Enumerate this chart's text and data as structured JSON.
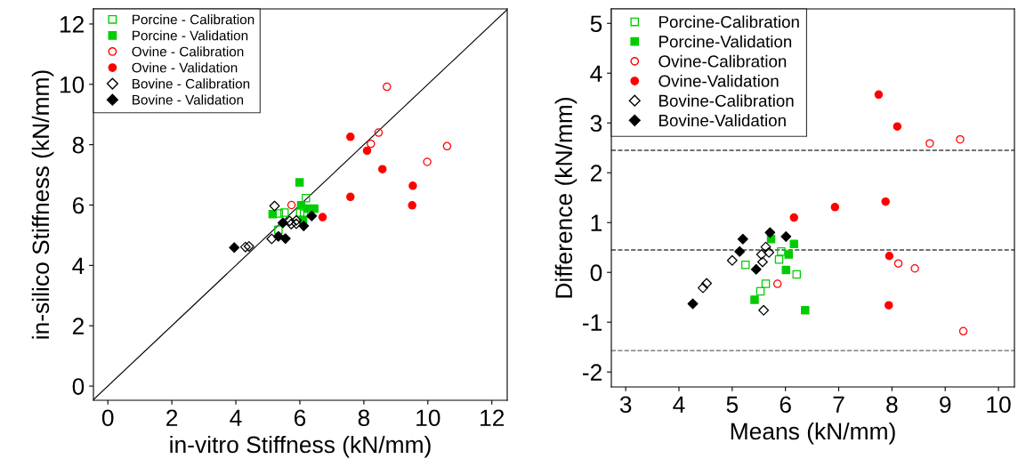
{
  "chart_data": [
    {
      "type": "scatter",
      "xlabel": "in-vitro Stiffness (kN/mm)",
      "ylabel": "in-silico Stiffness (kN/mm)",
      "xlim": [
        -0.45,
        12.48
      ],
      "ylim": [
        -0.47,
        12.5
      ],
      "xticks": [
        0,
        2,
        4,
        6,
        8,
        10,
        12
      ],
      "yticks": [
        0,
        2,
        4,
        6,
        8,
        10,
        12
      ],
      "grid": false,
      "legend": "top left",
      "series": [
        {
          "name": "Porcine - Calibration",
          "color": "#00cc00",
          "marker": "square",
          "x": [
            5.33,
            6.13,
            6.01,
            6.19,
            5.52,
            5.34
          ],
          "values": [
            5.18,
            5.71,
            5.75,
            6.23,
            5.75,
            5.72
          ]
        },
        {
          "name": "Porcine - Validation",
          "color": "#00cc00",
          "marker": "square",
          "x": [
            6.1,
            6.45,
            6.24,
            6.04,
            5.15,
            5.99
          ],
          "values": [
            5.51,
            5.88,
            5.88,
            5.99,
            5.7,
            6.75
          ]
        },
        {
          "name": "Ovine - Calibration",
          "color": "#ff0000",
          "marker": "circle",
          "x": [
            8.72,
            8.46,
            8.22,
            10.6,
            9.98,
            5.74
          ],
          "values": [
            9.92,
            8.4,
            8.03,
            7.95,
            7.43,
            6.0
          ]
        },
        {
          "name": "Ovine - Validation",
          "color": "#ff0000",
          "marker": "circle",
          "x": [
            7.58,
            8.1,
            8.58,
            9.53,
            7.58,
            9.51,
            6.71
          ],
          "values": [
            8.26,
            7.8,
            7.19,
            6.64,
            6.27,
            5.99,
            5.6
          ]
        },
        {
          "name": "Bovine - Calibration",
          "color": "#000000",
          "marker": "diamond",
          "x": [
            5.21,
            5.12,
            4.41,
            4.3,
            5.89,
            5.73,
            5.89,
            5.68
          ],
          "values": [
            5.97,
            4.88,
            4.63,
            4.61,
            5.38,
            5.37,
            5.49,
            5.47
          ]
        },
        {
          "name": "Bovine - Validation",
          "color": "#000000",
          "marker": "diamond",
          "x": [
            3.95,
            5.47,
            5.33,
            5.55,
            6.12,
            6.37
          ],
          "values": [
            4.59,
            5.41,
            4.96,
            4.89,
            5.31,
            5.64
          ]
        },
        {
          "type": "line",
          "color": "#000000",
          "line_style": "solid",
          "x": [
            -0.45,
            12.48
          ],
          "values": [
            -0.45,
            12.48
          ]
        }
      ]
    },
    {
      "type": "scatter",
      "xlabel": "Means (kN/mm)",
      "ylabel": "Difference (kN/mm)",
      "xlim": [
        2.73,
        10.3
      ],
      "ylim": [
        -2.3,
        5.29
      ],
      "xticks": [
        3,
        4,
        5,
        6,
        7,
        8,
        9,
        10
      ],
      "yticks": [
        -2,
        -1,
        0,
        1,
        2,
        3,
        4,
        5
      ],
      "grid": false,
      "legend": "top left",
      "ref_lines": [
        {
          "axis": "y",
          "value": 2.45,
          "color": "#444444",
          "line_style": "dashed"
        },
        {
          "axis": "y",
          "value": 0.45,
          "color": "#444444",
          "line_style": "dashed"
        },
        {
          "axis": "y",
          "value": -1.57,
          "color": "#666666",
          "line_style": "dashed"
        }
      ],
      "series": [
        {
          "name": "Porcine-Calibration",
          "color": "#00cc00",
          "marker": "square",
          "x": [
            5.25,
            5.92,
            5.88,
            6.21,
            5.63,
            5.53
          ],
          "values": [
            0.15,
            0.42,
            0.26,
            -0.04,
            -0.23,
            -0.38
          ]
        },
        {
          "name": "Porcine-Validation",
          "color": "#00cc00",
          "marker": "square",
          "x": [
            5.73,
            6.16,
            6.06,
            6.01,
            5.42,
            6.37
          ],
          "values": [
            0.67,
            0.57,
            0.36,
            0.05,
            -0.55,
            -0.76
          ]
        },
        {
          "name": "Ovine-Calibration",
          "color": "#ff0000",
          "marker": "circle",
          "x": [
            8.71,
            9.28,
            8.12,
            8.43,
            5.85,
            9.34
          ],
          "values": [
            2.59,
            2.67,
            0.18,
            0.08,
            -0.23,
            -1.18
          ]
        },
        {
          "name": "Ovine-Validation",
          "color": "#ff0000",
          "marker": "circle",
          "x": [
            7.75,
            8.1,
            6.93,
            7.88,
            6.16,
            7.95,
            7.94
          ],
          "values": [
            3.57,
            2.93,
            1.31,
            1.42,
            1.1,
            0.33,
            -0.66
          ]
        },
        {
          "name": "Bovine-Calibration",
          "color": "#000000",
          "marker": "diamond",
          "x": [
            5.0,
            4.52,
            4.45,
            5.63,
            5.55,
            5.69,
            5.57,
            5.59
          ],
          "values": [
            0.24,
            -0.22,
            -0.31,
            0.51,
            0.36,
            0.4,
            0.21,
            -0.76
          ]
        },
        {
          "name": "Bovine-Validation",
          "color": "#000000",
          "marker": "diamond",
          "x": [
            5.2,
            5.14,
            5.71,
            6.01,
            5.45,
            4.26
          ],
          "values": [
            0.67,
            0.42,
            0.8,
            0.72,
            0.06,
            -0.63
          ]
        }
      ]
    }
  ]
}
